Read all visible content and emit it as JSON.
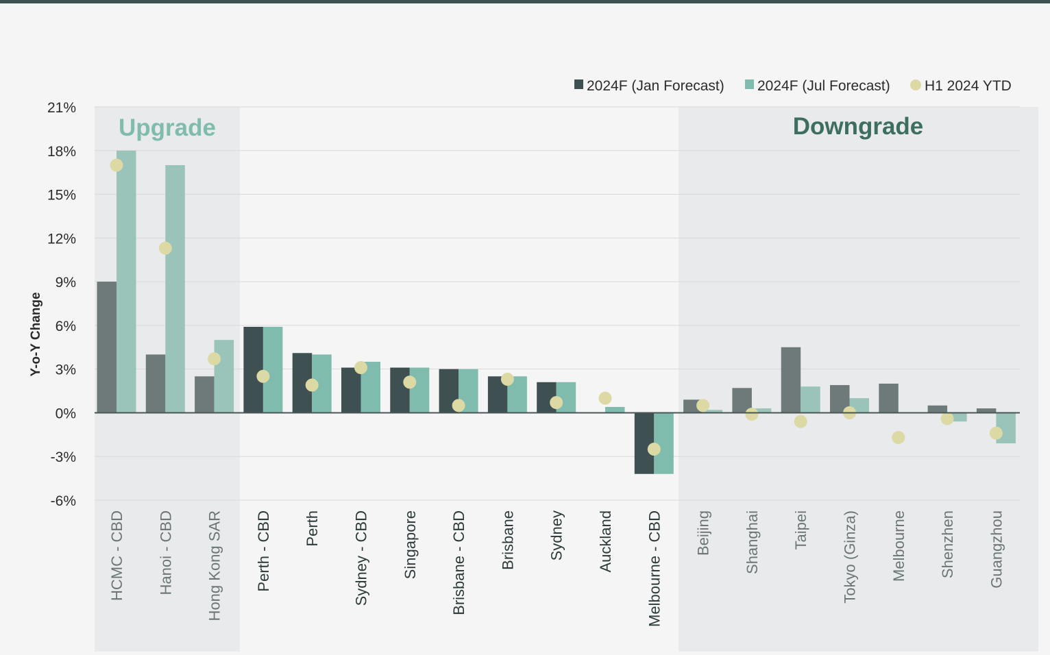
{
  "chart_data": {
    "type": "bar",
    "title": "",
    "xlabel": "",
    "ylabel": "Y-o-Y Change",
    "ylim": [
      -6,
      21
    ],
    "yticks": [
      21,
      18,
      15,
      12,
      9,
      6,
      3,
      0,
      -3,
      -6
    ],
    "ytick_labels": [
      "21%",
      "18%",
      "15%",
      "12%",
      "9%",
      "6%",
      "3%",
      "0%",
      "-3%",
      "-6%"
    ],
    "grid": true,
    "legend_position": "top-right",
    "categories": [
      "HCMC - CBD",
      "Hanoi - CBD",
      "Hong Kong SAR",
      "Perth - CBD",
      "Perth",
      "Sydney - CBD",
      "Singapore",
      "Brisbane - CBD",
      "Brisbane",
      "Sydney",
      "Auckland",
      "Melbourne - CBD",
      "Beijing",
      "Shanghai",
      "Taipei",
      "Tokyo (Ginza)",
      "Melbourne",
      "Shenzhen",
      "Guangzhou"
    ],
    "series": [
      {
        "name": "2024F (Jan Forecast)",
        "kind": "bar",
        "values": [
          9.0,
          4.0,
          2.5,
          5.9,
          4.1,
          3.1,
          3.1,
          3.0,
          2.5,
          2.1,
          0.0,
          -4.2,
          0.9,
          1.7,
          4.5,
          1.9,
          2.0,
          0.5,
          0.3
        ]
      },
      {
        "name": "2024F (Jul Forecast)",
        "kind": "bar",
        "values": [
          18.0,
          17.0,
          5.0,
          5.9,
          4.0,
          3.5,
          3.1,
          3.0,
          2.5,
          2.1,
          0.4,
          -4.2,
          0.2,
          0.3,
          1.8,
          1.0,
          0.0,
          -0.6,
          -2.1
        ]
      },
      {
        "name": "H1 2024 YTD",
        "kind": "dot",
        "values": [
          17.0,
          11.3,
          3.7,
          2.5,
          1.9,
          3.1,
          2.1,
          0.5,
          2.3,
          0.7,
          1.0,
          -2.5,
          0.5,
          -0.1,
          -0.6,
          0.0,
          -1.7,
          -0.4,
          -1.4
        ]
      }
    ],
    "annotations": [
      {
        "text": "Upgrade",
        "from_category": 0,
        "to_category": 2
      },
      {
        "text": "Downgrade",
        "from_category": 12,
        "to_category": 18
      }
    ],
    "colors": {
      "jan_highlight": "#3f5052",
      "jan_muted": "#6e7a7a",
      "jul_highlight": "#7fbcad",
      "jul_muted": "#9ac3ba",
      "dot": "#dcd9a4",
      "upgrade_text": "#7fbcad",
      "downgrade_text": "#3d6e5f",
      "shade": "#e9eaeb",
      "grid": "#d9d9d9",
      "axis_text": "#2b2b2b",
      "category_text": "#2d3a3a",
      "category_text_muted": "#6b7575"
    }
  }
}
